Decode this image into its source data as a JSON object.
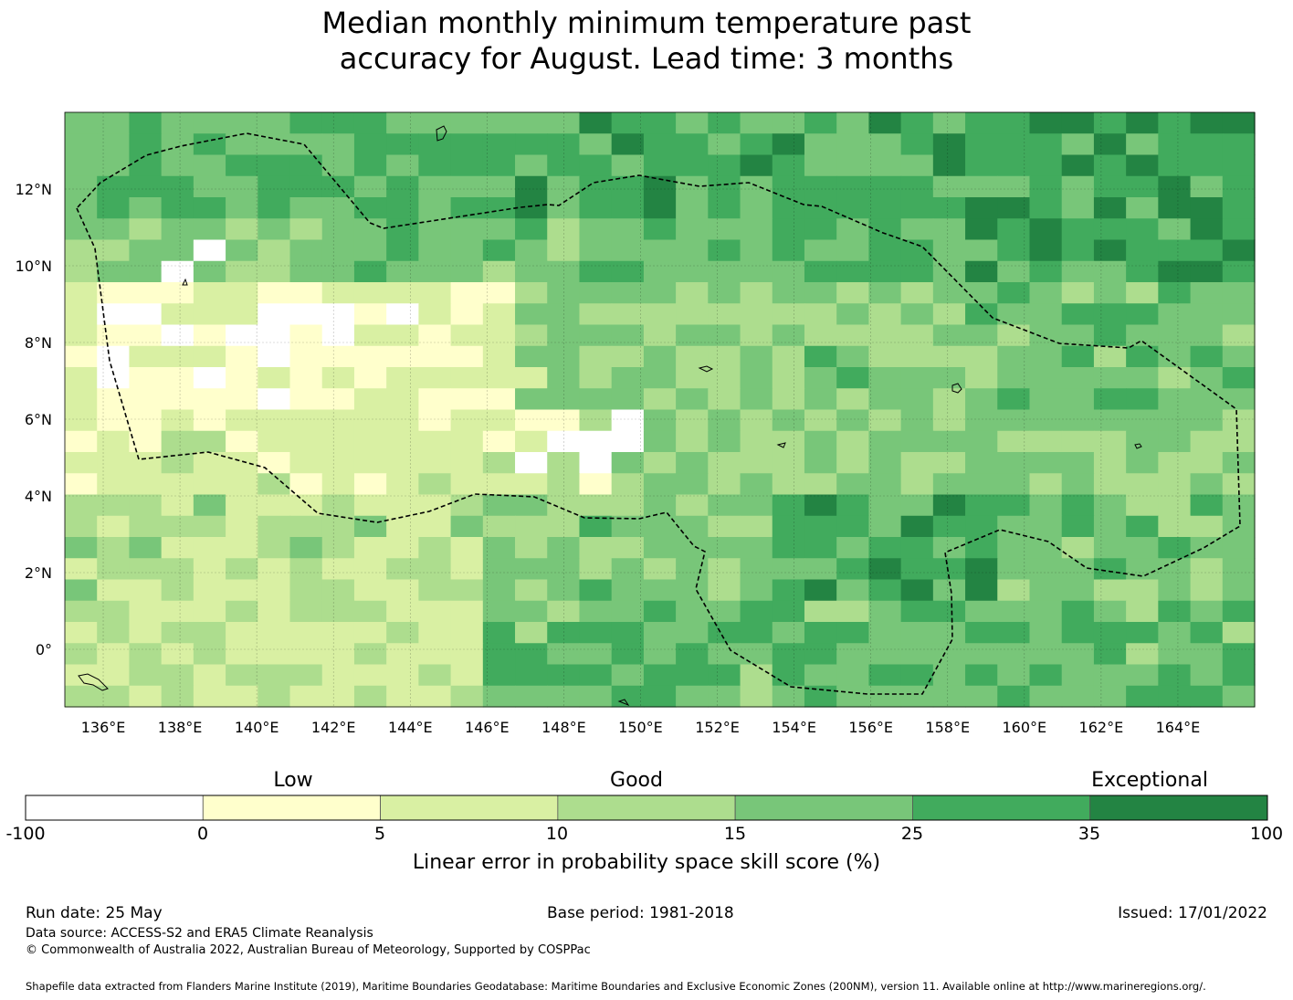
{
  "title": {
    "line1": "Median monthly minimum temperature past",
    "line2": "accuracy for August. Lead time: 3 months"
  },
  "map": {
    "lon_range": [
      135,
      166
    ],
    "lat_range": [
      -1.5,
      14
    ],
    "lon_ticks": [
      "136°E",
      "138°E",
      "140°E",
      "142°E",
      "144°E",
      "146°E",
      "148°E",
      "150°E",
      "152°E",
      "154°E",
      "156°E",
      "158°E",
      "160°E",
      "162°E",
      "164°E"
    ],
    "lat_ticks": [
      "12°N",
      "10°N",
      "8°N",
      "6°N",
      "4°N",
      "2°N",
      "0°"
    ]
  },
  "colorbar": {
    "categories": [
      "Low",
      "Good",
      "Exceptional"
    ],
    "tick_labels": [
      "-100",
      "0",
      "5",
      "10",
      "15",
      "25",
      "35",
      "100"
    ],
    "colors": [
      "#ffffff",
      "#ffffcc",
      "#d9f0a3",
      "#addd8e",
      "#78c679",
      "#41ab5d",
      "#238443"
    ],
    "xlabel": "Linear error in probability space skill score (%)"
  },
  "footer": {
    "run_date": "Run date: 25 May",
    "base_period": "Base period: 1981-2018",
    "issued": "Issued: 17/01/2022",
    "data_source": "Data source: ACCESS-S2 and ERA5 Climate Reanalysis",
    "copyright": "© Commonwealth of Australia 2022, Australian Bureau of Meteorology, Supported by COSPPac",
    "shapefile": "Shapefile data extracted from Flanders Marine Institute (2019), Maritime Boundaries Geodatabase: Maritime Boundaries and Exclusive Economic Zones (200NM), version 11. Available online at http://www.marineregions.org/."
  }
}
